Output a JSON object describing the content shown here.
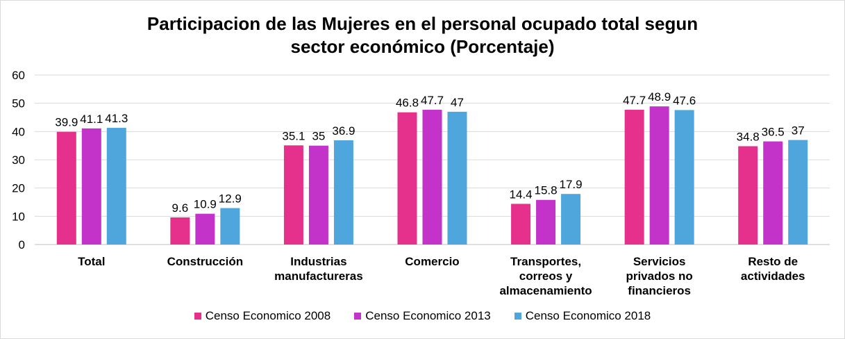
{
  "chart_data": {
    "type": "bar",
    "title_lines": [
      "Participacion de las Mujeres en el personal ocupado total segun",
      "sector económico (Porcentaje)"
    ],
    "categories": [
      [
        "Total"
      ],
      [
        "Construcción"
      ],
      [
        "Industrias",
        "manufactureras"
      ],
      [
        "Comercio"
      ],
      [
        "Transportes,",
        "correos y",
        "almacenamiento"
      ],
      [
        "Servicios",
        "privados no",
        "financieros"
      ],
      [
        "Resto de",
        "actividades"
      ]
    ],
    "series": [
      {
        "name": "Censo Economico 2008",
        "color": "#e5318b",
        "values": [
          39.9,
          9.6,
          35.1,
          46.8,
          14.4,
          47.7,
          34.8
        ]
      },
      {
        "name": "Censo Economico 2013",
        "color": "#c433c9",
        "values": [
          41.1,
          10.9,
          35,
          47.7,
          15.8,
          48.9,
          36.5
        ]
      },
      {
        "name": "Censo Economico 2018",
        "color": "#4ea6dc",
        "values": [
          41.3,
          12.9,
          36.9,
          47,
          17.9,
          47.6,
          37
        ]
      }
    ],
    "ylim": [
      0,
      60
    ],
    "yticks": [
      0,
      10,
      20,
      30,
      40,
      50,
      60
    ],
    "xlabel": "",
    "ylabel": "",
    "grid": true,
    "legend_position": "bottom"
  }
}
